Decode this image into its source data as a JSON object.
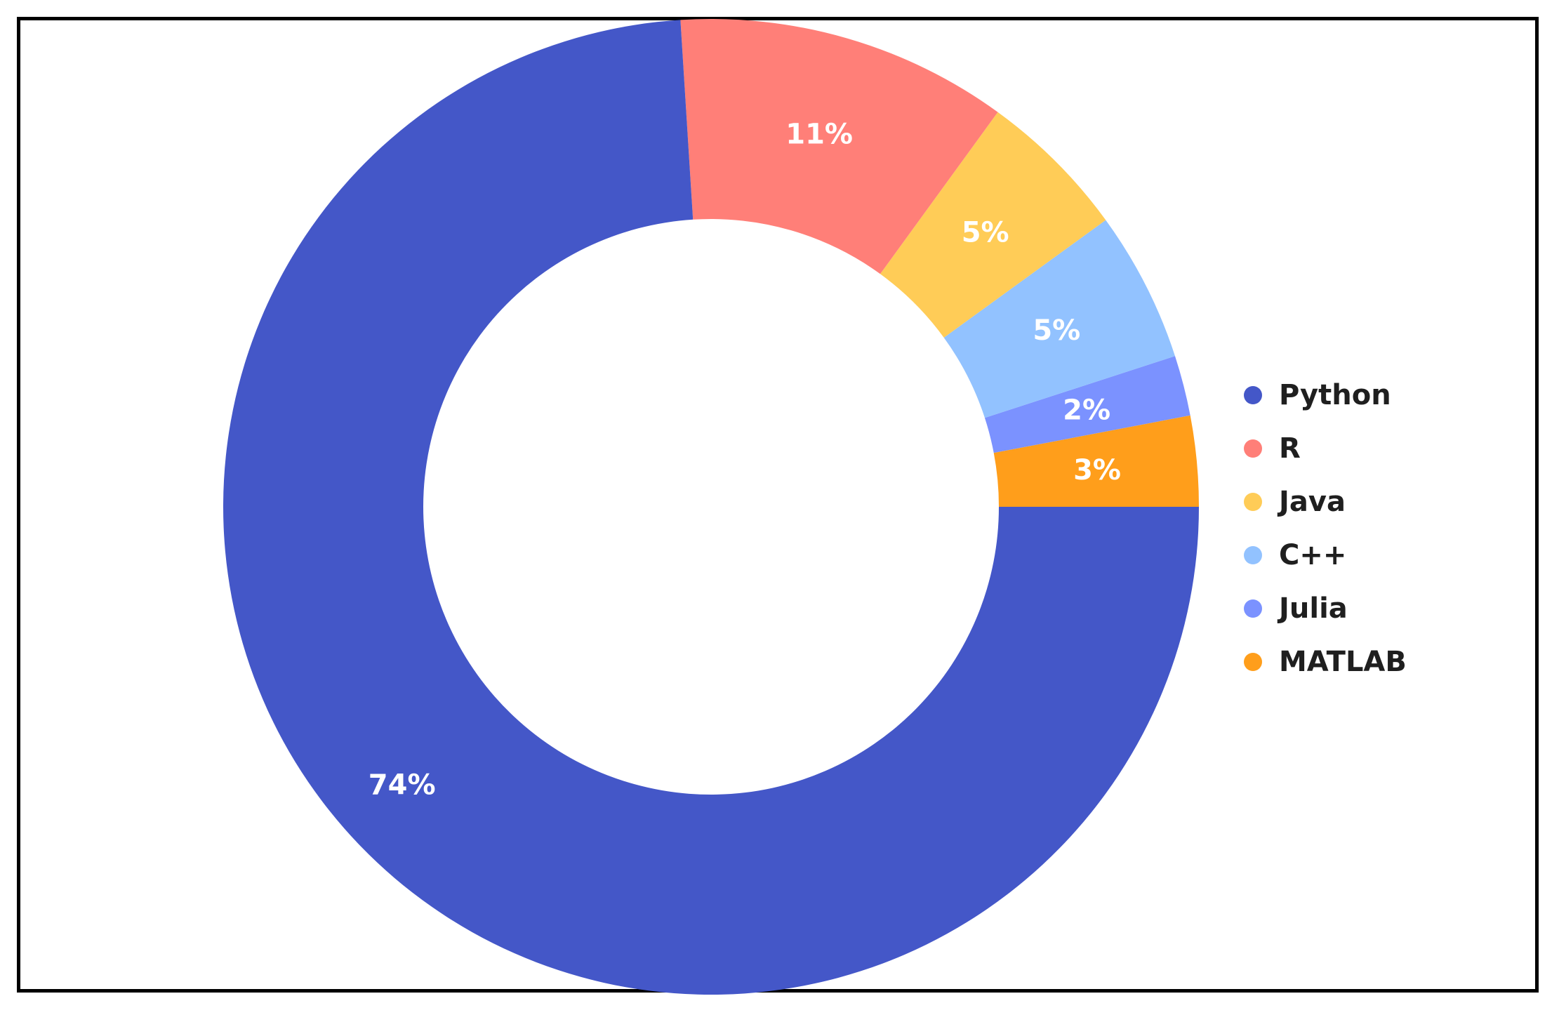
{
  "chart_data": {
    "type": "pie",
    "donut": true,
    "categories": [
      "Python",
      "R",
      "Java",
      "C++",
      "Julia",
      "MATLAB"
    ],
    "values": [
      74,
      11,
      5,
      5,
      2,
      3
    ],
    "labels": [
      "74%",
      "11%",
      "5%",
      "5%",
      "2%",
      "3%"
    ],
    "colors": [
      "#4457C8",
      "#FF7F78",
      "#FFCC57",
      "#92C2FF",
      "#7B92FF",
      "#FF9E1B"
    ],
    "start_angle_deg": 0,
    "direction": "counterclockwise",
    "legend": {
      "position": "right",
      "entries": [
        "Python",
        "R",
        "Java",
        "C++",
        "Julia",
        "MATLAB"
      ]
    }
  }
}
